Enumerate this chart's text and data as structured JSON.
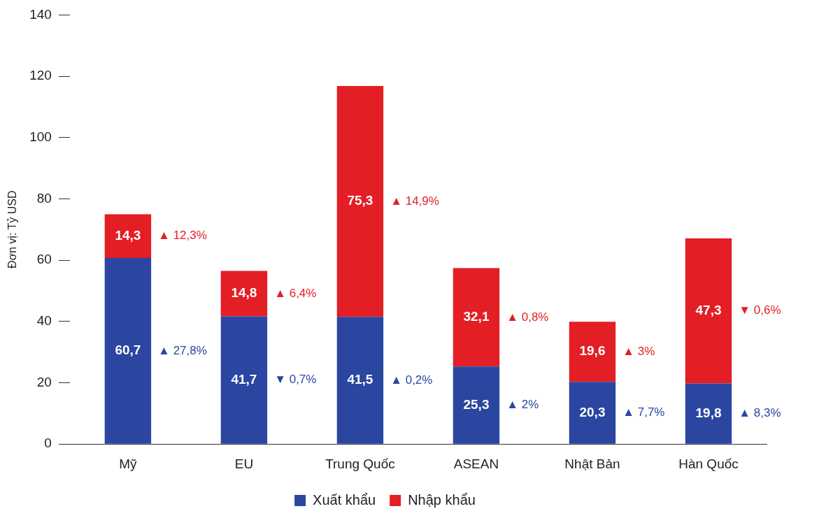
{
  "chart_data": {
    "type": "bar",
    "ylabel": "Đơn vị: Tỷ USD",
    "categories": [
      "Mỹ",
      "EU",
      "Trung Quốc",
      "ASEAN",
      "Nhật Bản",
      "Hàn Quốc"
    ],
    "series": [
      {
        "name": "Xuất khẩu",
        "color": "#2a46a0",
        "values": [
          60.7,
          41.7,
          41.5,
          25.3,
          20.3,
          19.8
        ],
        "value_labels": [
          "60,7",
          "41,7",
          "41,5",
          "25,3",
          "20,3",
          "19,8"
        ]
      },
      {
        "name": "Nhập khẩu",
        "color": "#e31e24",
        "values": [
          14.3,
          14.8,
          75.3,
          32.1,
          19.6,
          47.3
        ],
        "value_labels": [
          "14,3",
          "14,8",
          "75,3",
          "32,1",
          "19,6",
          "47,3"
        ]
      }
    ],
    "stacked": true,
    "ylim": [
      0,
      140
    ],
    "yticks": [
      0,
      20,
      40,
      60,
      80,
      100,
      120,
      140
    ],
    "legend": "bottom",
    "annotations": [
      "▲ 27,8%",
      "▲ 12,3%",
      "▼ 0,7%",
      "▲ 6,4%",
      "▲ 0,2%",
      "▲ 14,9%",
      "▲ 2%",
      "▲ 0,8%",
      "▲ 7,7%",
      "▲ 3%",
      "▲ 8,3%",
      "▼ 0,6%"
    ]
  }
}
